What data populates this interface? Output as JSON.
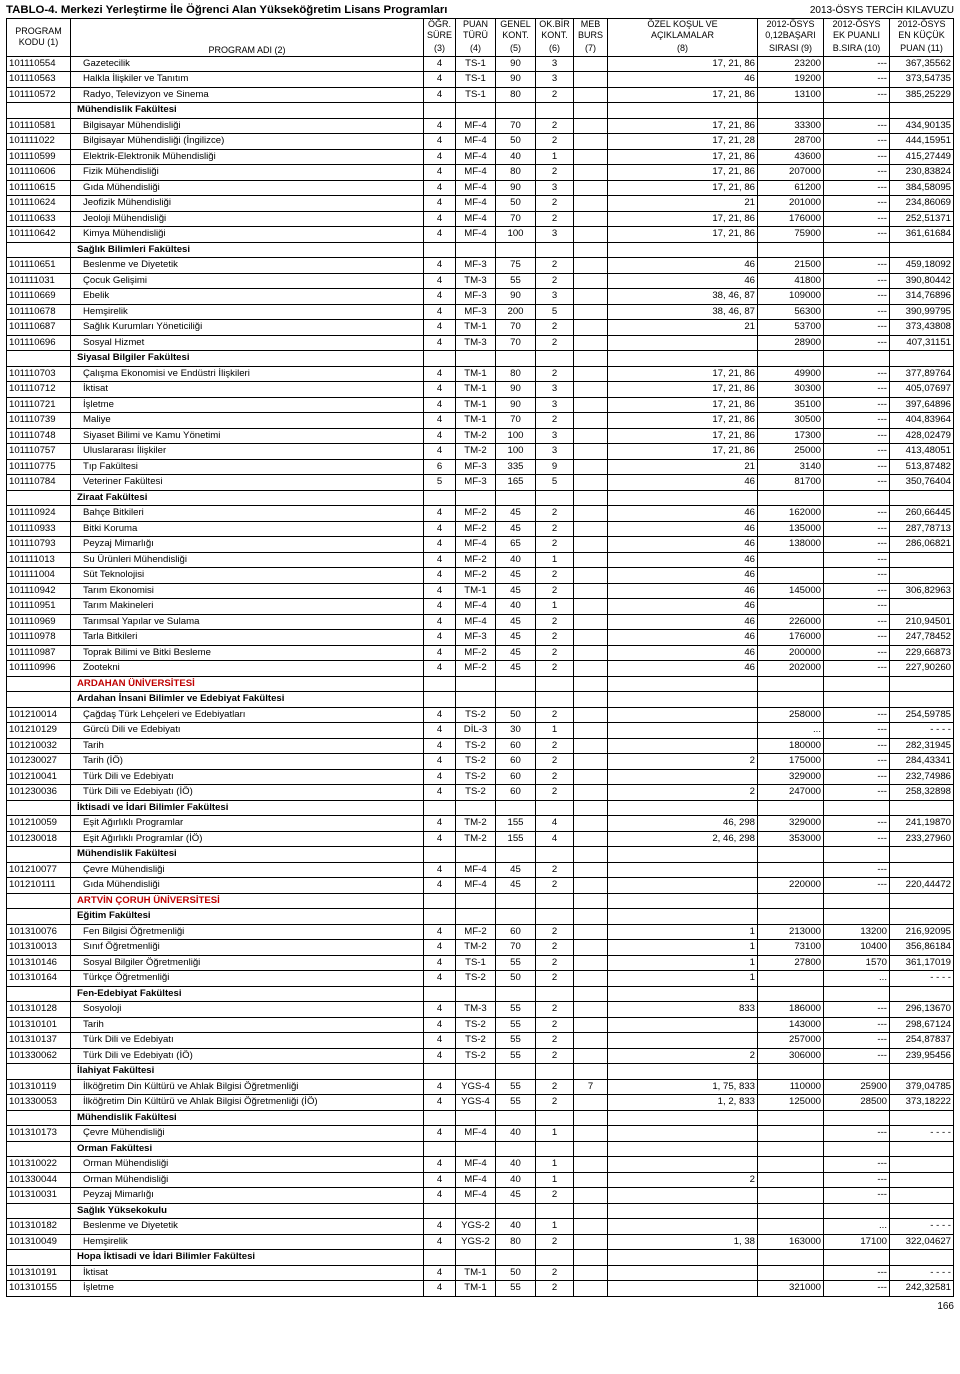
{
  "title_left": "TABLO-4. Merkezi Yerleştirme İle Öğrenci Alan Yükseköğretim Lisans Programları",
  "title_right": "2013-ÖSYS TERCİH KILAVUZU",
  "page_number": "166",
  "headers": {
    "kodu_t": "PROGRAM",
    "kodu_b": "KODU (1)",
    "adi_b": "PROGRAM ADI (2)",
    "sure_t": "ÖĞR.",
    "sure_m": "SÜRE",
    "sure_b": "(3)",
    "turu_t": "PUAN",
    "turu_m": "TÜRÜ",
    "turu_b": "(4)",
    "genel_t": "GENEL",
    "genel_m": "KONT.",
    "genel_b": "(5)",
    "okbir_t": "OK.BİR",
    "okbir_m": "KONT.",
    "okbir_b": "(6)",
    "meb_t": "MEB",
    "meb_m": "BURS",
    "meb_b": "(7)",
    "ozel_t": "ÖZEL KOŞUL VE",
    "ozel_m": "AÇIKLAMALAR",
    "ozel_b": "(8)",
    "c9_t": "2012-ÖSYS",
    "c9_m": "0,12BAŞARI",
    "c9_b": "SIRASI (9)",
    "c10_t": "2012-ÖSYS",
    "c10_m": "EK PUANLI",
    "c10_b": "B.SIRA (10)",
    "c11_t": "2012-ÖSYS",
    "c11_m": "EN KÜÇÜK",
    "c11_b": "PUAN (11)"
  },
  "rows": [
    {
      "k": "101110554",
      "ad": "Gazetecilik",
      "s": "4",
      "t": "TS-1",
      "g": "90",
      "o": "3",
      "m": "",
      "oz": "17, 21, 86",
      "c9": "23200",
      "c10": "---",
      "c11": "367,35562"
    },
    {
      "k": "101110563",
      "ad": "Halkla İlişkiler ve Tanıtım",
      "s": "4",
      "t": "TS-1",
      "g": "90",
      "o": "3",
      "m": "",
      "oz": "46",
      "c9": "19200",
      "c10": "---",
      "c11": "373,54735"
    },
    {
      "k": "101110572",
      "ad": "Radyo, Televizyon ve Sinema",
      "s": "4",
      "t": "TS-1",
      "g": "80",
      "o": "2",
      "m": "",
      "oz": "17, 21, 86",
      "c9": "13100",
      "c10": "---",
      "c11": "385,25229"
    },
    {
      "section": true,
      "ad": "Mühendislik Fakültesi"
    },
    {
      "k": "101110581",
      "ad": "Bilgisayar Mühendisliği",
      "s": "4",
      "t": "MF-4",
      "g": "70",
      "o": "2",
      "m": "",
      "oz": "17, 21, 86",
      "c9": "33300",
      "c10": "---",
      "c11": "434,90135"
    },
    {
      "k": "101111022",
      "ad": "Bilgisayar Mühendisliği (İngilizce)",
      "s": "4",
      "t": "MF-4",
      "g": "50",
      "o": "2",
      "m": "",
      "oz": "17, 21, 28",
      "c9": "28700",
      "c10": "---",
      "c11": "444,15951"
    },
    {
      "k": "101110599",
      "ad": "Elektrik-Elektronik Mühendisliği",
      "s": "4",
      "t": "MF-4",
      "g": "40",
      "o": "1",
      "m": "",
      "oz": "17, 21, 86",
      "c9": "43600",
      "c10": "---",
      "c11": "415,27449"
    },
    {
      "k": "101110606",
      "ad": "Fizik Mühendisliği",
      "s": "4",
      "t": "MF-4",
      "g": "80",
      "o": "2",
      "m": "",
      "oz": "17, 21, 86",
      "c9": "207000",
      "c10": "---",
      "c11": "230,83824"
    },
    {
      "k": "101110615",
      "ad": "Gıda Mühendisliği",
      "s": "4",
      "t": "MF-4",
      "g": "90",
      "o": "3",
      "m": "",
      "oz": "17, 21, 86",
      "c9": "61200",
      "c10": "---",
      "c11": "384,58095"
    },
    {
      "k": "101110624",
      "ad": "Jeofizik Mühendisliği",
      "s": "4",
      "t": "MF-4",
      "g": "50",
      "o": "2",
      "m": "",
      "oz": "21",
      "c9": "201000",
      "c10": "---",
      "c11": "234,86069"
    },
    {
      "k": "101110633",
      "ad": "Jeoloji Mühendisliği",
      "s": "4",
      "t": "MF-4",
      "g": "70",
      "o": "2",
      "m": "",
      "oz": "17, 21, 86",
      "c9": "176000",
      "c10": "---",
      "c11": "252,51371"
    },
    {
      "k": "101110642",
      "ad": "Kimya Mühendisliği",
      "s": "4",
      "t": "MF-4",
      "g": "100",
      "o": "3",
      "m": "",
      "oz": "17, 21, 86",
      "c9": "75900",
      "c10": "---",
      "c11": "361,61684"
    },
    {
      "section": true,
      "ad": "Sağlık Bilimleri Fakültesi"
    },
    {
      "k": "101110651",
      "ad": "Beslenme ve Diyetetik",
      "s": "4",
      "t": "MF-3",
      "g": "75",
      "o": "2",
      "m": "",
      "oz": "46",
      "c9": "21500",
      "c10": "---",
      "c11": "459,18092"
    },
    {
      "k": "101111031",
      "ad": "Çocuk Gelişimi",
      "s": "4",
      "t": "TM-3",
      "g": "55",
      "o": "2",
      "m": "",
      "oz": "46",
      "c9": "41800",
      "c10": "---",
      "c11": "390,80442"
    },
    {
      "k": "101110669",
      "ad": "Ebelik",
      "s": "4",
      "t": "MF-3",
      "g": "90",
      "o": "3",
      "m": "",
      "oz": "38, 46, 87",
      "c9": "109000",
      "c10": "---",
      "c11": "314,76896"
    },
    {
      "k": "101110678",
      "ad": "Hemşirelik",
      "s": "4",
      "t": "MF-3",
      "g": "200",
      "o": "5",
      "m": "",
      "oz": "38, 46, 87",
      "c9": "56300",
      "c10": "---",
      "c11": "390,99795"
    },
    {
      "k": "101110687",
      "ad": "Sağlık Kurumları Yöneticiliği",
      "s": "4",
      "t": "TM-1",
      "g": "70",
      "o": "2",
      "m": "",
      "oz": "21",
      "c9": "53700",
      "c10": "---",
      "c11": "373,43808"
    },
    {
      "k": "101110696",
      "ad": "Sosyal Hizmet",
      "s": "4",
      "t": "TM-3",
      "g": "70",
      "o": "2",
      "m": "",
      "oz": "",
      "c9": "28900",
      "c10": "---",
      "c11": "407,31151"
    },
    {
      "section": true,
      "ad": "Siyasal Bilgiler Fakültesi"
    },
    {
      "k": "101110703",
      "ad": "Çalışma Ekonomisi ve Endüstri İlişkileri",
      "s": "4",
      "t": "TM-1",
      "g": "80",
      "o": "2",
      "m": "",
      "oz": "17, 21, 86",
      "c9": "49900",
      "c10": "---",
      "c11": "377,89764"
    },
    {
      "k": "101110712",
      "ad": "İktisat",
      "s": "4",
      "t": "TM-1",
      "g": "90",
      "o": "3",
      "m": "",
      "oz": "17, 21, 86",
      "c9": "30300",
      "c10": "---",
      "c11": "405,07697"
    },
    {
      "k": "101110721",
      "ad": "İşletme",
      "s": "4",
      "t": "TM-1",
      "g": "90",
      "o": "3",
      "m": "",
      "oz": "17, 21, 86",
      "c9": "35100",
      "c10": "---",
      "c11": "397,64896"
    },
    {
      "k": "101110739",
      "ad": "Maliye",
      "s": "4",
      "t": "TM-1",
      "g": "70",
      "o": "2",
      "m": "",
      "oz": "17, 21, 86",
      "c9": "30500",
      "c10": "---",
      "c11": "404,83964"
    },
    {
      "k": "101110748",
      "ad": "Siyaset Bilimi ve Kamu Yönetimi",
      "s": "4",
      "t": "TM-2",
      "g": "100",
      "o": "3",
      "m": "",
      "oz": "17, 21, 86",
      "c9": "17300",
      "c10": "---",
      "c11": "428,02479"
    },
    {
      "k": "101110757",
      "ad": "Uluslararası İlişkiler",
      "s": "4",
      "t": "TM-2",
      "g": "100",
      "o": "3",
      "m": "",
      "oz": "17, 21, 86",
      "c9": "25000",
      "c10": "---",
      "c11": "413,48051"
    },
    {
      "k": "101110775",
      "ad": "Tıp Fakültesi",
      "s": "6",
      "t": "MF-3",
      "g": "335",
      "o": "9",
      "m": "",
      "oz": "21",
      "c9": "3140",
      "c10": "---",
      "c11": "513,87482"
    },
    {
      "k": "101110784",
      "ad": "Veteriner Fakültesi",
      "s": "5",
      "t": "MF-3",
      "g": "165",
      "o": "5",
      "m": "",
      "oz": "46",
      "c9": "81700",
      "c10": "---",
      "c11": "350,76404"
    },
    {
      "section": true,
      "ad": "Ziraat Fakültesi"
    },
    {
      "k": "101110924",
      "ad": "Bahçe Bitkileri",
      "s": "4",
      "t": "MF-2",
      "g": "45",
      "o": "2",
      "m": "",
      "oz": "46",
      "c9": "162000",
      "c10": "---",
      "c11": "260,66445"
    },
    {
      "k": "101110933",
      "ad": "Bitki Koruma",
      "s": "4",
      "t": "MF-2",
      "g": "45",
      "o": "2",
      "m": "",
      "oz": "46",
      "c9": "135000",
      "c10": "---",
      "c11": "287,78713"
    },
    {
      "k": "101110793",
      "ad": "Peyzaj Mimarlığı",
      "s": "4",
      "t": "MF-4",
      "g": "65",
      "o": "2",
      "m": "",
      "oz": "46",
      "c9": "138000",
      "c10": "---",
      "c11": "286,06821"
    },
    {
      "k": "101111013",
      "ad": "Su Ürünleri Mühendisliği",
      "s": "4",
      "t": "MF-2",
      "g": "40",
      "o": "1",
      "m": "",
      "oz": "46",
      "c9": "",
      "c10": "---",
      "c11": ""
    },
    {
      "k": "101111004",
      "ad": "Süt Teknolojisi",
      "s": "4",
      "t": "MF-2",
      "g": "45",
      "o": "2",
      "m": "",
      "oz": "46",
      "c9": "",
      "c10": "---",
      "c11": ""
    },
    {
      "k": "101110942",
      "ad": "Tarım Ekonomisi",
      "s": "4",
      "t": "TM-1",
      "g": "45",
      "o": "2",
      "m": "",
      "oz": "46",
      "c9": "145000",
      "c10": "---",
      "c11": "306,82963"
    },
    {
      "k": "101110951",
      "ad": "Tarım Makineleri",
      "s": "4",
      "t": "MF-4",
      "g": "40",
      "o": "1",
      "m": "",
      "oz": "46",
      "c9": "",
      "c10": "---",
      "c11": ""
    },
    {
      "k": "101110969",
      "ad": "Tarımsal Yapılar ve Sulama",
      "s": "4",
      "t": "MF-4",
      "g": "45",
      "o": "2",
      "m": "",
      "oz": "46",
      "c9": "226000",
      "c10": "---",
      "c11": "210,94501"
    },
    {
      "k": "101110978",
      "ad": "Tarla Bitkileri",
      "s": "4",
      "t": "MF-3",
      "g": "45",
      "o": "2",
      "m": "",
      "oz": "46",
      "c9": "176000",
      "c10": "---",
      "c11": "247,78452"
    },
    {
      "k": "101110987",
      "ad": "Toprak Bilimi ve Bitki Besleme",
      "s": "4",
      "t": "MF-2",
      "g": "45",
      "o": "2",
      "m": "",
      "oz": "46",
      "c9": "200000",
      "c10": "---",
      "c11": "229,66873"
    },
    {
      "k": "101110996",
      "ad": "Zootekni",
      "s": "4",
      "t": "MF-2",
      "g": "45",
      "o": "2",
      "m": "",
      "oz": "46",
      "c9": "202000",
      "c10": "---",
      "c11": "227,90260"
    },
    {
      "uni": true,
      "ad": "ARDAHAN ÜNİVERSİTESİ"
    },
    {
      "section": true,
      "ad": "Ardahan İnsani Bilimler ve Edebiyat Fakültesi"
    },
    {
      "k": "101210014",
      "ad": "Çağdaş Türk Lehçeleri ve Edebiyatları",
      "s": "4",
      "t": "TS-2",
      "g": "50",
      "o": "2",
      "m": "",
      "oz": "",
      "c9": "258000",
      "c10": "---",
      "c11": "254,59785"
    },
    {
      "k": "101210129",
      "ad": "Gürcü Dili ve Edebiyatı",
      "s": "4",
      "t": "DİL-3",
      "g": "30",
      "o": "1",
      "m": "",
      "oz": "",
      "c9": "...",
      "c10": "---",
      "c11": "- - - -"
    },
    {
      "k": "101210032",
      "ad": "Tarih",
      "s": "4",
      "t": "TS-2",
      "g": "60",
      "o": "2",
      "m": "",
      "oz": "",
      "c9": "180000",
      "c10": "---",
      "c11": "282,31945"
    },
    {
      "k": "101230027",
      "ad": "Tarih (İÖ)",
      "s": "4",
      "t": "TS-2",
      "g": "60",
      "o": "2",
      "m": "",
      "oz": "2",
      "c9": "175000",
      "c10": "---",
      "c11": "284,43341"
    },
    {
      "k": "101210041",
      "ad": "Türk Dili ve Edebiyatı",
      "s": "4",
      "t": "TS-2",
      "g": "60",
      "o": "2",
      "m": "",
      "oz": "",
      "c9": "329000",
      "c10": "---",
      "c11": "232,74986"
    },
    {
      "k": "101230036",
      "ad": "Türk Dili ve Edebiyatı (İÖ)",
      "s": "4",
      "t": "TS-2",
      "g": "60",
      "o": "2",
      "m": "",
      "oz": "2",
      "c9": "247000",
      "c10": "---",
      "c11": "258,32898"
    },
    {
      "section": true,
      "ad": "İktisadi ve İdari Bilimler Fakültesi"
    },
    {
      "k": "101210059",
      "ad": "Eşit Ağırlıklı Programlar",
      "s": "4",
      "t": "TM-2",
      "g": "155",
      "o": "4",
      "m": "",
      "oz": "46, 298",
      "c9": "329000",
      "c10": "---",
      "c11": "241,19870"
    },
    {
      "k": "101230018",
      "ad": "Eşit Ağırlıklı Programlar (İÖ)",
      "s": "4",
      "t": "TM-2",
      "g": "155",
      "o": "4",
      "m": "",
      "oz": "2, 46, 298",
      "c9": "353000",
      "c10": "---",
      "c11": "233,27960"
    },
    {
      "section": true,
      "ad": "Mühendislik Fakültesi"
    },
    {
      "k": "101210077",
      "ad": "Çevre Mühendisliği",
      "s": "4",
      "t": "MF-4",
      "g": "45",
      "o": "2",
      "m": "",
      "oz": "",
      "c9": "",
      "c10": "---",
      "c11": ""
    },
    {
      "k": "101210111",
      "ad": "Gıda Mühendisliği",
      "s": "4",
      "t": "MF-4",
      "g": "45",
      "o": "2",
      "m": "",
      "oz": "",
      "c9": "220000",
      "c10": "---",
      "c11": "220,44472"
    },
    {
      "uni": true,
      "ad": "ARTVİN ÇORUH ÜNİVERSİTESİ"
    },
    {
      "section": true,
      "ad": "Eğitim Fakültesi"
    },
    {
      "k": "101310076",
      "ad": "Fen Bilgisi Öğretmenliği",
      "s": "4",
      "t": "MF-2",
      "g": "60",
      "o": "2",
      "m": "",
      "oz": "1",
      "c9": "213000",
      "c10": "13200",
      "c11": "216,92095"
    },
    {
      "k": "101310013",
      "ad": "Sınıf Öğretmenliği",
      "s": "4",
      "t": "TM-2",
      "g": "70",
      "o": "2",
      "m": "",
      "oz": "1",
      "c9": "73100",
      "c10": "10400",
      "c11": "356,86184"
    },
    {
      "k": "101310146",
      "ad": "Sosyal Bilgiler Öğretmenliği",
      "s": "4",
      "t": "TS-1",
      "g": "55",
      "o": "2",
      "m": "",
      "oz": "1",
      "c9": "27800",
      "c10": "1570",
      "c11": "361,17019"
    },
    {
      "k": "101310164",
      "ad": "Türkçe Öğretmenliği",
      "s": "4",
      "t": "TS-2",
      "g": "50",
      "o": "2",
      "m": "",
      "oz": "1",
      "c9": "",
      "c10": "...",
      "c11": "- - - -"
    },
    {
      "section": true,
      "ad": "Fen-Edebiyat Fakültesi"
    },
    {
      "k": "101310128",
      "ad": "Sosyoloji",
      "s": "4",
      "t": "TM-3",
      "g": "55",
      "o": "2",
      "m": "",
      "oz": "833",
      "c9": "186000",
      "c10": "---",
      "c11": "296,13670"
    },
    {
      "k": "101310101",
      "ad": "Tarih",
      "s": "4",
      "t": "TS-2",
      "g": "55",
      "o": "2",
      "m": "",
      "oz": "",
      "c9": "143000",
      "c10": "---",
      "c11": "298,67124"
    },
    {
      "k": "101310137",
      "ad": "Türk Dili ve Edebiyatı",
      "s": "4",
      "t": "TS-2",
      "g": "55",
      "o": "2",
      "m": "",
      "oz": "",
      "c9": "257000",
      "c10": "---",
      "c11": "254,87837"
    },
    {
      "k": "101330062",
      "ad": "Türk Dili ve Edebiyatı (İÖ)",
      "s": "4",
      "t": "TS-2",
      "g": "55",
      "o": "2",
      "m": "",
      "oz": "2",
      "c9": "306000",
      "c10": "---",
      "c11": "239,95456"
    },
    {
      "section": true,
      "ad": "İlahiyat Fakültesi"
    },
    {
      "k": "101310119",
      "ad": "İlköğretim Din Kültürü ve Ahlak Bilgisi Öğretmenliği",
      "s": "4",
      "t": "YGS-4",
      "g": "55",
      "o": "2",
      "m": "7",
      "oz": "1, 75, 833",
      "c9": "110000",
      "c10": "25900",
      "c11": "379,04785"
    },
    {
      "k": "101330053",
      "ad": "İlköğretim Din Kültürü ve Ahlak Bilgisi Öğretmenliği (İÖ)",
      "s": "4",
      "t": "YGS-4",
      "g": "55",
      "o": "2",
      "m": "",
      "oz": "1, 2, 833",
      "c9": "125000",
      "c10": "28500",
      "c11": "373,18222"
    },
    {
      "section": true,
      "ad": "Mühendislik Fakültesi"
    },
    {
      "k": "101310173",
      "ad": "Çevre Mühendisliği",
      "s": "4",
      "t": "MF-4",
      "g": "40",
      "o": "1",
      "m": "",
      "oz": "",
      "c9": "",
      "c10": "---",
      "c11": "- - - -"
    },
    {
      "section": true,
      "ad": "Orman Fakültesi"
    },
    {
      "k": "101310022",
      "ad": "Orman Mühendisliği",
      "s": "4",
      "t": "MF-4",
      "g": "40",
      "o": "1",
      "m": "",
      "oz": "",
      "c9": "",
      "c10": "---",
      "c11": ""
    },
    {
      "k": "101330044",
      "ad": "Orman Mühendisliği",
      "s": "4",
      "t": "MF-4",
      "g": "40",
      "o": "1",
      "m": "",
      "oz": "2",
      "c9": "",
      "c10": "---",
      "c11": ""
    },
    {
      "k": "101310031",
      "ad": "Peyzaj Mimarlığı",
      "s": "4",
      "t": "MF-4",
      "g": "45",
      "o": "2",
      "m": "",
      "oz": "",
      "c9": "",
      "c10": "---",
      "c11": ""
    },
    {
      "section": true,
      "ad": "Sağlık Yüksekokulu"
    },
    {
      "k": "101310182",
      "ad": "Beslenme ve Diyetetik",
      "s": "4",
      "t": "YGS-2",
      "g": "40",
      "o": "1",
      "m": "",
      "oz": "",
      "c9": "",
      "c10": "...",
      "c11": "- - - -"
    },
    {
      "k": "101310049",
      "ad": "Hemşirelik",
      "s": "4",
      "t": "YGS-2",
      "g": "80",
      "o": "2",
      "m": "",
      "oz": "1, 38",
      "c9": "163000",
      "c10": "17100",
      "c11": "322,04627"
    },
    {
      "section": true,
      "ad": "Hopa İktisadi ve İdari Bilimler Fakültesi"
    },
    {
      "k": "101310191",
      "ad": "İktisat",
      "s": "4",
      "t": "TM-1",
      "g": "50",
      "o": "2",
      "m": "",
      "oz": "",
      "c9": "",
      "c10": "---",
      "c11": "- - - -"
    },
    {
      "k": "101310155",
      "ad": "İşletme",
      "s": "4",
      "t": "TM-1",
      "g": "55",
      "o": "2",
      "m": "",
      "oz": "",
      "c9": "321000",
      "c10": "---",
      "c11": "242,32581"
    }
  ]
}
